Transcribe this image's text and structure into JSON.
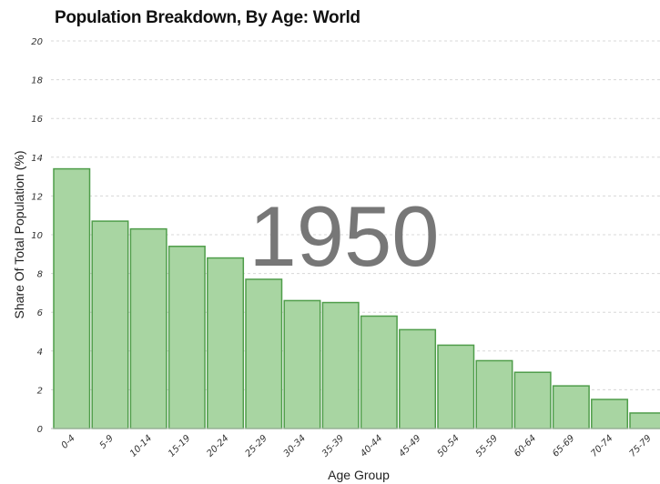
{
  "chart_data": {
    "type": "bar",
    "title": "Population Breakdown, By Age: World",
    "xlabel": "Age Group",
    "ylabel": "Share Of Total Population (%)",
    "annotation": "1950",
    "ylim": [
      0,
      20
    ],
    "yticks": [
      0,
      2,
      4,
      6,
      8,
      10,
      12,
      14,
      16,
      18,
      20
    ],
    "grid": true,
    "categories": [
      "0-4",
      "5-9",
      "10-14",
      "15-19",
      "20-24",
      "25-29",
      "30-34",
      "35-39",
      "40-44",
      "45-49",
      "50-54",
      "55-59",
      "60-64",
      "65-69",
      "70-74",
      "75-79"
    ],
    "values": [
      13.4,
      10.7,
      10.3,
      9.4,
      8.8,
      7.7,
      6.6,
      6.5,
      5.8,
      5.1,
      4.3,
      3.5,
      2.9,
      2.2,
      1.5,
      0.8
    ],
    "colors": {
      "bar_fill": "#a8d5a2",
      "bar_stroke": "#4f9d4a",
      "year_text": "#777777"
    }
  }
}
